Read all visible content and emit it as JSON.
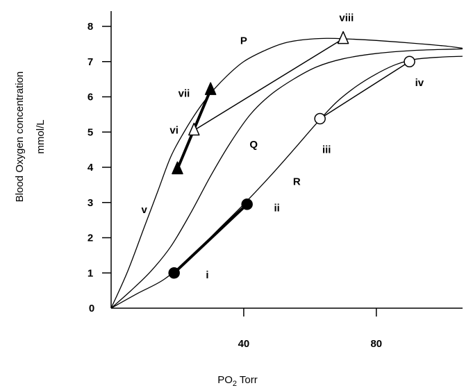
{
  "chart_data": {
    "type": "line",
    "title": "",
    "xlabel": {
      "main": "PO",
      "sub": "2",
      "rest": " Torr"
    },
    "ylabel": [
      "Blood Oxygen concentration",
      "mmol/L"
    ],
    "xlim": [
      0,
      110
    ],
    "ylim": [
      0,
      8.2
    ],
    "xticks": [
      40,
      80
    ],
    "yticks": [
      {
        "value": 0,
        "label": "0"
      },
      {
        "value": 1,
        "label": "1"
      },
      {
        "value": 2,
        "label": "2"
      },
      {
        "value": 3,
        "label": "3"
      },
      {
        "value": 4,
        "label": "4"
      },
      {
        "value": 5,
        "label": "5"
      },
      {
        "value": 6,
        "label": "6"
      },
      {
        "value": 7,
        "label": "7"
      },
      {
        "value": 8,
        "label": "8"
      }
    ],
    "grid": false,
    "series": [
      {
        "name": "P",
        "label_at": [
          40,
          7.6
        ],
        "points": [
          [
            0,
            0
          ],
          [
            5,
            1.05
          ],
          [
            10,
            2.3
          ],
          [
            14,
            3.3
          ],
          [
            18,
            4.3
          ],
          [
            22,
            5.0
          ],
          [
            26,
            5.6
          ],
          [
            30,
            6.1
          ],
          [
            35,
            6.6
          ],
          [
            40,
            7.0
          ],
          [
            46,
            7.3
          ],
          [
            52,
            7.52
          ],
          [
            58,
            7.62
          ],
          [
            65,
            7.66
          ],
          [
            72,
            7.64
          ],
          [
            80,
            7.6
          ],
          [
            90,
            7.53
          ],
          [
            100,
            7.45
          ],
          [
            106,
            7.38
          ]
        ]
      },
      {
        "name": "Q",
        "label_at": [
          43,
          4.65
        ],
        "points": [
          [
            0,
            0
          ],
          [
            6,
            0.5
          ],
          [
            12,
            1.05
          ],
          [
            18,
            1.75
          ],
          [
            24,
            2.7
          ],
          [
            30,
            3.75
          ],
          [
            36,
            4.7
          ],
          [
            42,
            5.5
          ],
          [
            48,
            6.05
          ],
          [
            55,
            6.5
          ],
          [
            62,
            6.85
          ],
          [
            70,
            7.08
          ],
          [
            80,
            7.23
          ],
          [
            92,
            7.32
          ],
          [
            106,
            7.36
          ]
        ]
      },
      {
        "name": "R",
        "label_at": [
          56,
          3.6
        ],
        "points": [
          [
            0,
            0
          ],
          [
            8,
            0.42
          ],
          [
            16,
            0.82
          ],
          [
            24,
            1.45
          ],
          [
            32,
            2.2
          ],
          [
            40,
            2.95
          ],
          [
            48,
            3.75
          ],
          [
            56,
            4.6
          ],
          [
            62,
            5.25
          ],
          [
            68,
            5.85
          ],
          [
            74,
            6.3
          ],
          [
            80,
            6.65
          ],
          [
            86,
            6.92
          ],
          [
            92,
            7.07
          ],
          [
            100,
            7.13
          ],
          [
            106,
            7.15
          ]
        ]
      },
      {
        "name": "v",
        "label_at": [
          10,
          2.8
        ],
        "points": []
      }
    ],
    "markers": [
      {
        "label": "i",
        "x": 19,
        "y": 1.0,
        "shape": "circle",
        "fill": "#000000",
        "label_at": [
          29,
          0.95
        ]
      },
      {
        "label": "ii",
        "x": 41,
        "y": 2.95,
        "shape": "circle",
        "fill": "#000000",
        "label_at": [
          50,
          2.85
        ]
      },
      {
        "label": "iii",
        "x": 63,
        "y": 5.38,
        "shape": "circle",
        "fill": "#ffffff",
        "label_at": [
          65,
          4.5
        ]
      },
      {
        "label": "iv",
        "x": 90,
        "y": 7.0,
        "shape": "circle",
        "fill": "#ffffff",
        "label_at": [
          93,
          6.4
        ]
      },
      {
        "label": "v",
        "x": 20,
        "y": 3.95,
        "shape": "triangle",
        "fill": "#000000",
        "label_at": [
          10,
          2.8
        ]
      },
      {
        "label": "vi",
        "x": 25,
        "y": 5.05,
        "shape": "triangle",
        "fill": "#ffffff",
        "label_at": [
          19,
          5.05
        ]
      },
      {
        "label": "vii",
        "x": 30,
        "y": 6.2,
        "shape": "triangle",
        "fill": "#000000",
        "label_at": [
          22,
          6.1
        ]
      },
      {
        "label": "viii",
        "x": 70,
        "y": 7.65,
        "shape": "triangle",
        "fill": "#ffffff",
        "label_at": [
          71,
          8.25
        ]
      }
    ],
    "connectors": [
      {
        "from": "i",
        "to": "ii",
        "width": 4
      },
      {
        "from": "iii",
        "to": "iv",
        "width": 1.5
      },
      {
        "from": "v",
        "to": "vii",
        "width": 4
      },
      {
        "from": "vi",
        "to": "viii",
        "width": 1.5
      }
    ],
    "colors": {
      "line": "#000000",
      "background": "#ffffff"
    }
  }
}
